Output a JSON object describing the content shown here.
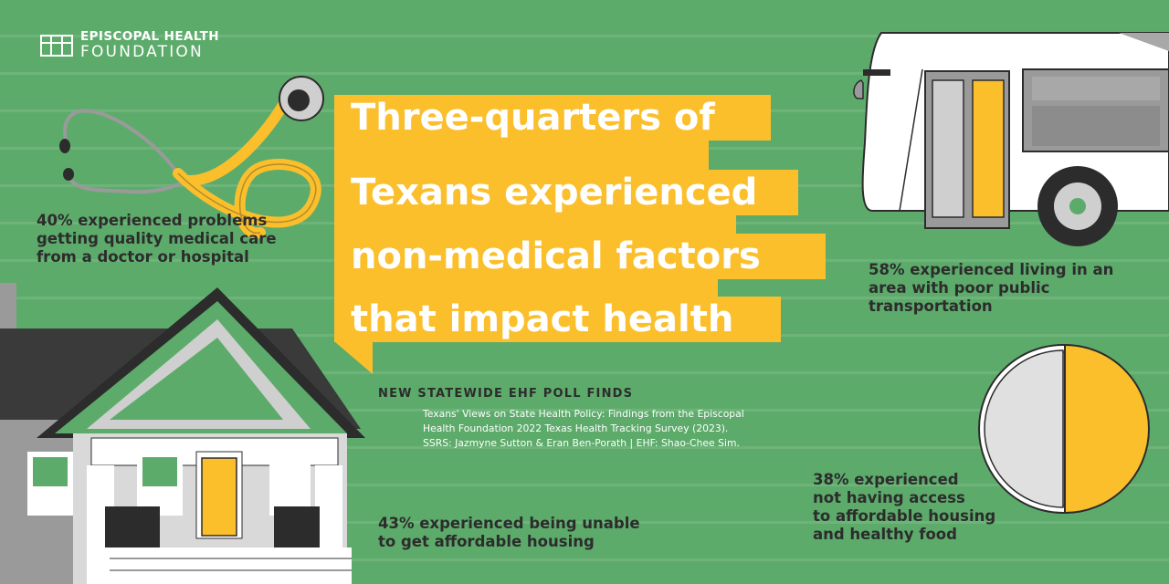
{
  "logo": {
    "line1": "EPISCOPAL HEALTH",
    "line2": "FOUNDATION",
    "icon": "grid-logo-icon"
  },
  "headline": {
    "lines": [
      "Three-quarters of",
      "Texans experienced",
      "non-medical factors",
      "that impact health"
    ]
  },
  "subtitle": "NEW STATEWIDE EHF POLL FINDS",
  "citation": {
    "lines": [
      "Texans' Views on State Health Policy: Findings from the Episcopal",
      "Health Foundation 2022 Texas Health Tracking Survey (2023).",
      "SSRS: Jazmyne Sutton & Eran Ben-Porath | EHF: Shao-Chee Sim."
    ]
  },
  "stats": {
    "medical_care": [
      "40% experienced problems",
      "getting quality medical care",
      "from a doctor or hospital"
    ],
    "transportation": [
      "58% experienced living in an",
      "area with poor public",
      "transportation"
    ],
    "housing": [
      "43% experienced being unable",
      "to get affordable housing"
    ],
    "housing_food": [
      "38% experienced",
      "not having access",
      "to affordable housing",
      "and healthy food"
    ]
  },
  "illustrations": {
    "stethoscope": "stethoscope-illustration",
    "bus": "bus-illustration",
    "house": "house-illustration",
    "plate": "plate-illustration"
  },
  "colors": {
    "background": "#5dab6b",
    "accent_yellow": "#fbbf2c",
    "text_dark": "#2c2c2c",
    "white": "#ffffff"
  }
}
